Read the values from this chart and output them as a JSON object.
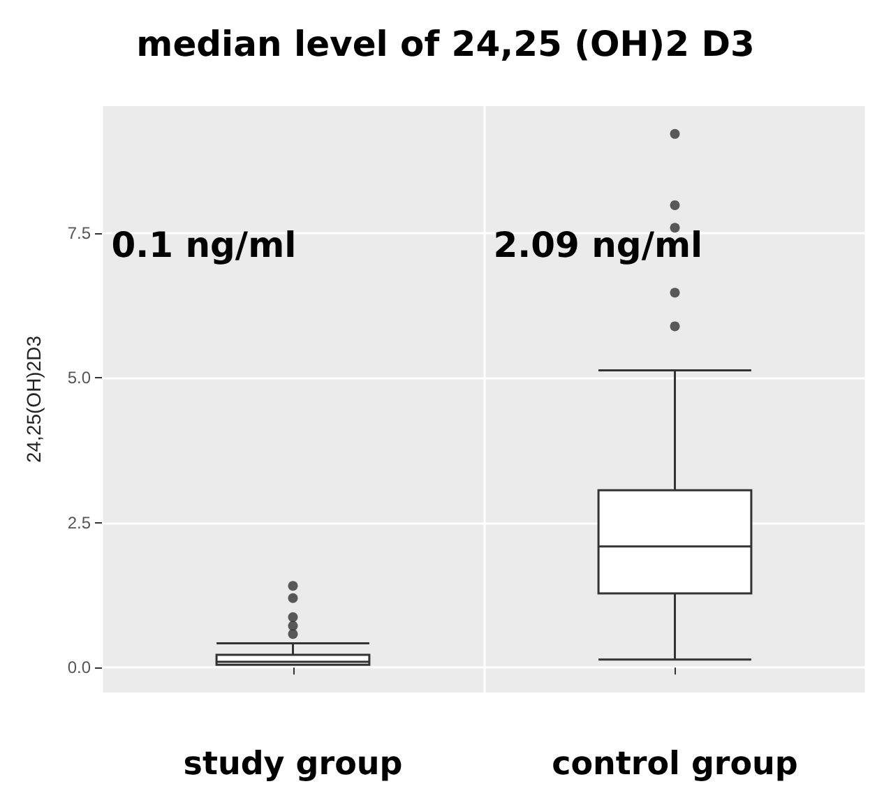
{
  "chart_data": {
    "type": "box",
    "title": "median level of 24,25 (OH)2 D3",
    "ylabel": "24,25(OH)2D3",
    "categories": [
      "study group",
      "control group"
    ],
    "boxes": [
      {
        "low": 0.05,
        "q1": 0.05,
        "median": 0.1,
        "q3": 0.22,
        "high": 0.42,
        "outliers": [
          0.58,
          0.72,
          0.87,
          1.2,
          1.41
        ]
      },
      {
        "low": 0.14,
        "q1": 1.28,
        "median": 2.09,
        "q3": 3.06,
        "high": 5.13,
        "outliers": [
          5.89,
          6.47,
          7.59,
          7.98,
          9.21
        ]
      }
    ],
    "color": "#333333",
    "ylim": [
      -0.43,
      9.69
    ],
    "yticks": [
      {
        "value": 0,
        "label": "0.0"
      },
      {
        "value": 2.5,
        "label": "2.5"
      },
      {
        "value": 5,
        "label": "5.0"
      },
      {
        "value": 7.5,
        "label": "7.5"
      }
    ],
    "grid": true,
    "annotations": [
      "0.1 ng/ml",
      "2.09 ng/ml"
    ]
  }
}
